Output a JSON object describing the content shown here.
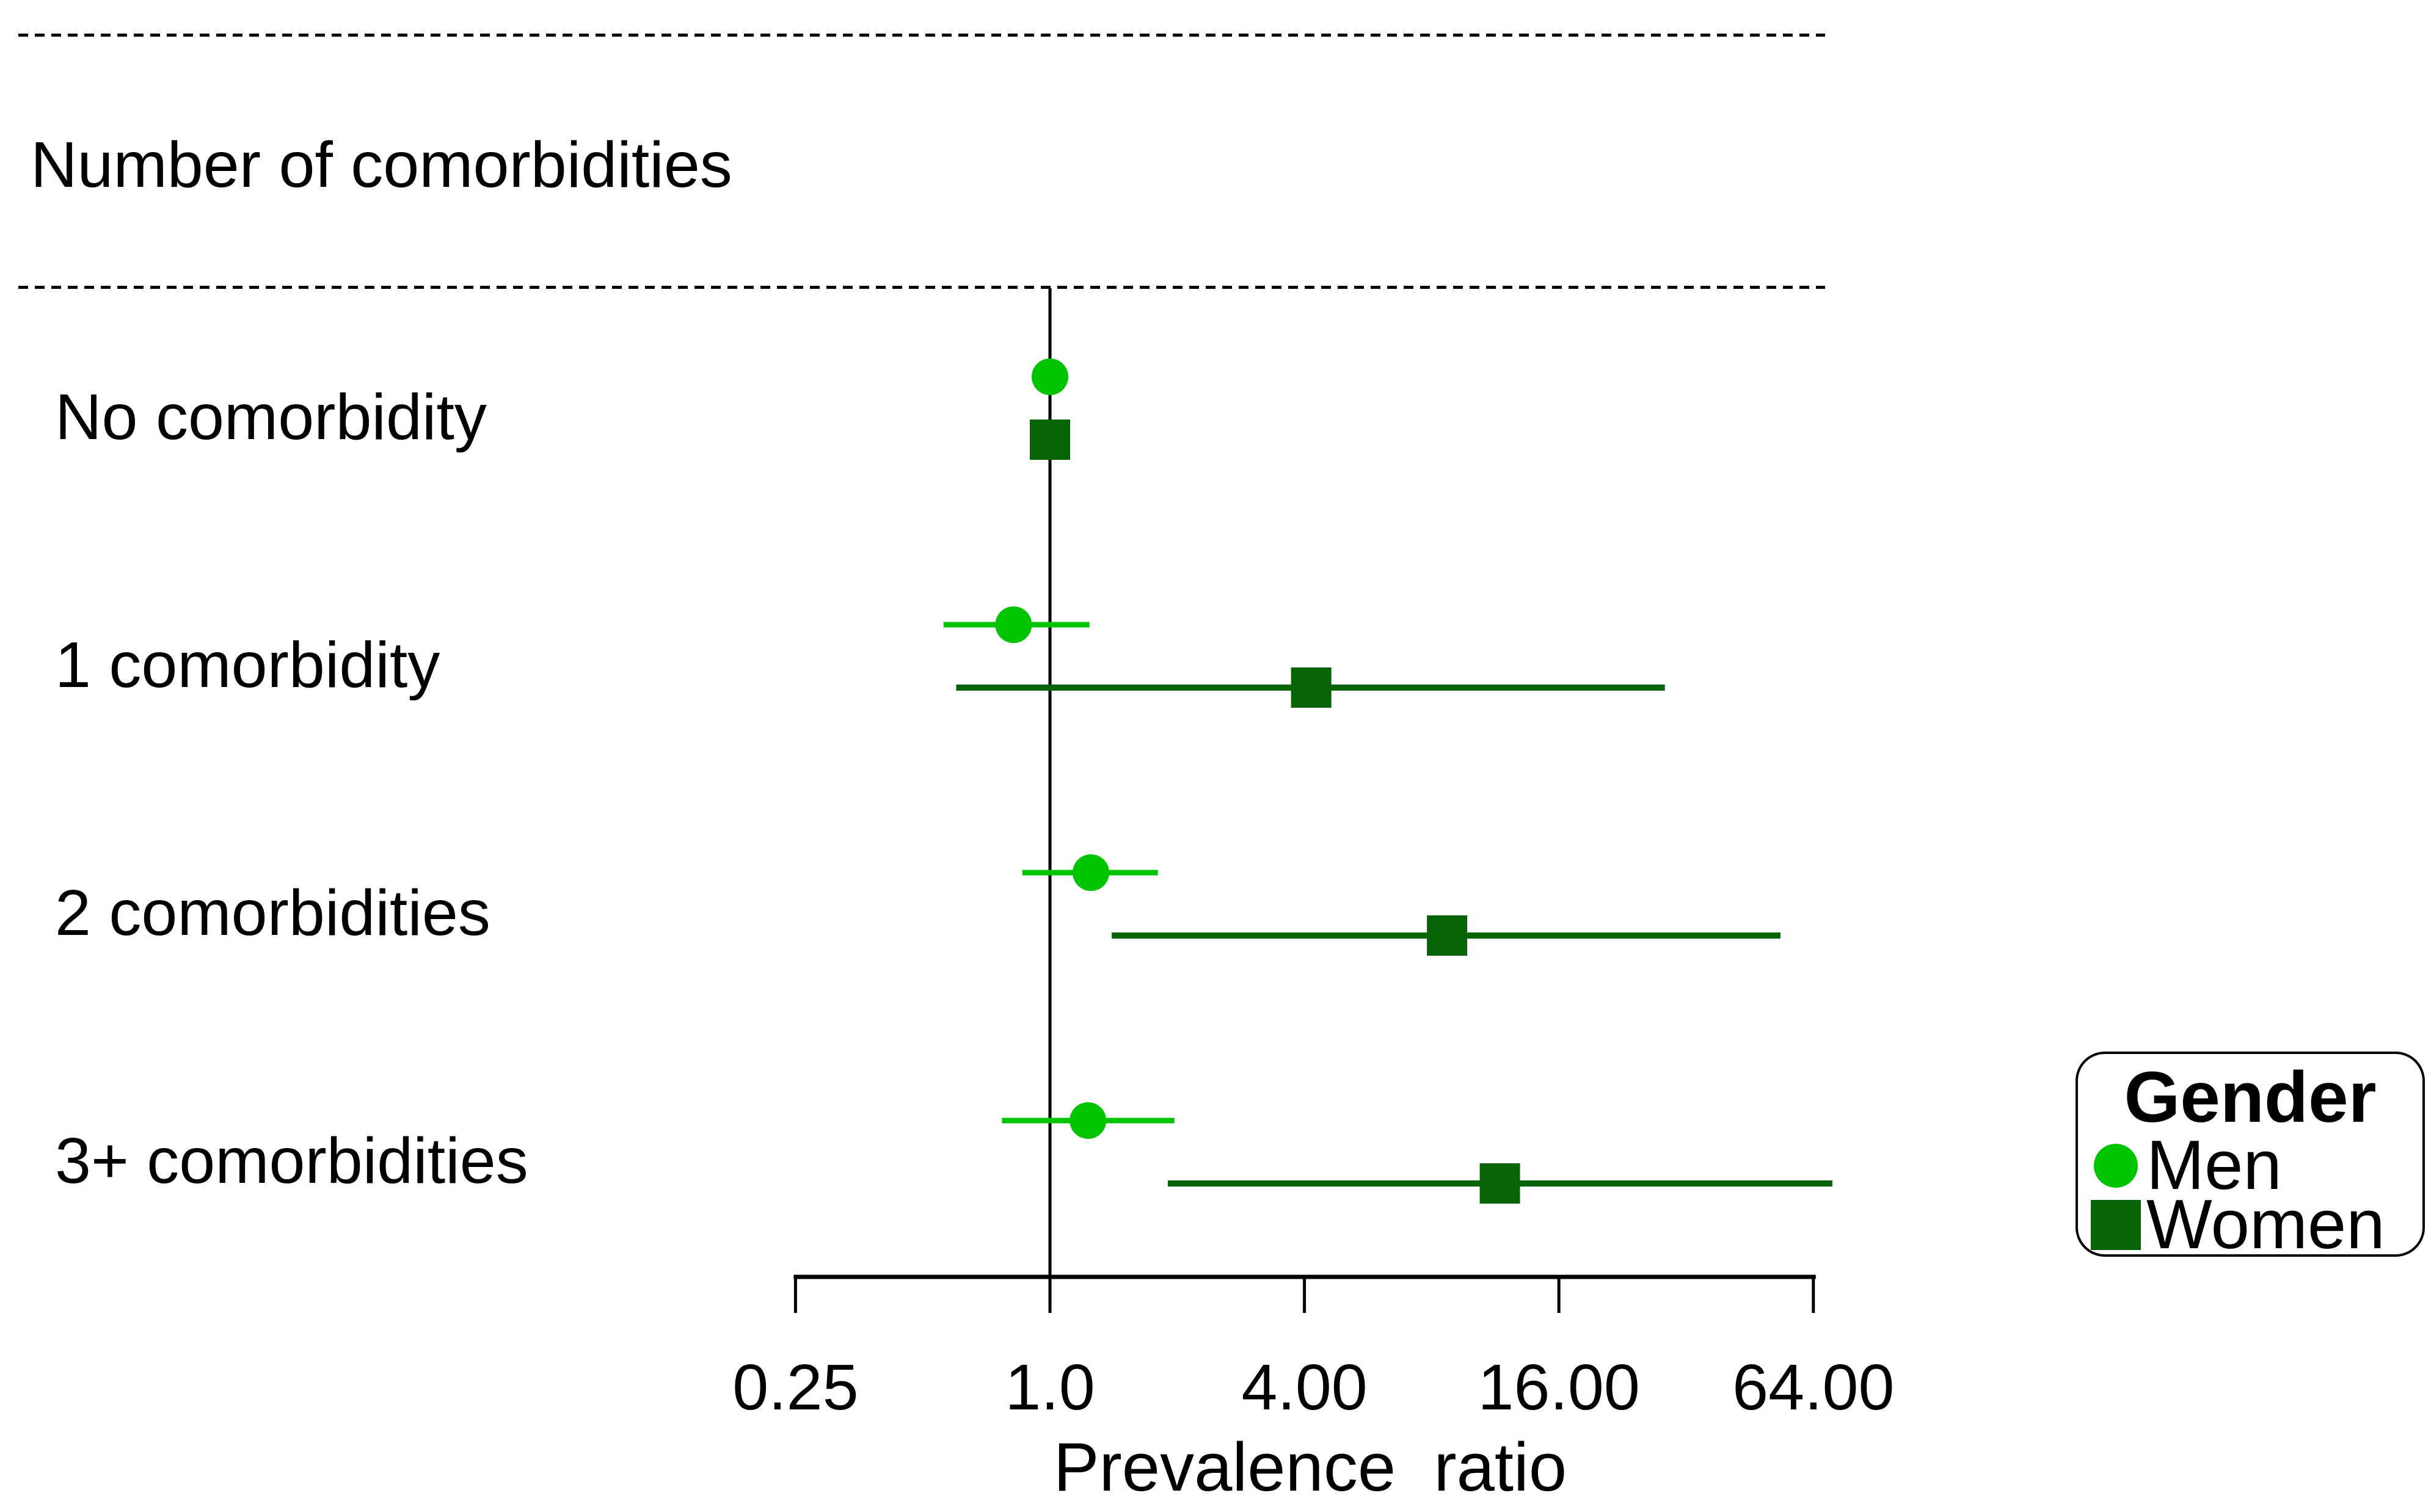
{
  "section_title": "Number of comorbidities",
  "colors": {
    "men": "#00C400",
    "women": "#066406",
    "axis": "#000000",
    "background": "#FFFFFF"
  },
  "chart_data": {
    "type": "scatter",
    "subtype": "forest-plot-with-error-bars",
    "title": "Number of comorbidities",
    "xlabel": "Prevalence  ratio",
    "ylabel": "",
    "x_axis": {
      "scale": "log2",
      "range": [
        0.25,
        64
      ],
      "ticks": [
        0.25,
        1,
        4,
        16,
        64
      ],
      "tick_labels": [
        "0.25",
        "1.0",
        "4.00",
        "16.00",
        "64.00"
      ]
    },
    "reference_line_x": 1.0,
    "grid": "off",
    "categories": [
      "No comorbidity",
      "1 comorbidity",
      "2 comorbidities",
      "3+ comorbidities"
    ],
    "series": [
      {
        "name": "Men",
        "marker": "circle",
        "color": "#00C400",
        "values": [
          {
            "pr": 1.0,
            "lo": null,
            "hi": null
          },
          {
            "pr": 0.82,
            "lo": 0.56,
            "hi": 1.24
          },
          {
            "pr": 1.25,
            "lo": 0.86,
            "hi": 1.8
          },
          {
            "pr": 1.23,
            "lo": 0.77,
            "hi": 1.97
          }
        ]
      },
      {
        "name": "Women",
        "marker": "square",
        "color": "#066406",
        "values": [
          {
            "pr": 1.0,
            "lo": null,
            "hi": null
          },
          {
            "pr": 4.15,
            "lo": 0.6,
            "hi": 28.5
          },
          {
            "pr": 8.7,
            "lo": 1.4,
            "hi": 53.5
          },
          {
            "pr": 11.6,
            "lo": 1.9,
            "hi": 71
          }
        ]
      }
    ],
    "legend": {
      "title": "Gender",
      "position": "right",
      "entries": [
        {
          "label": "Men"
        },
        {
          "label": "Women"
        }
      ]
    }
  }
}
